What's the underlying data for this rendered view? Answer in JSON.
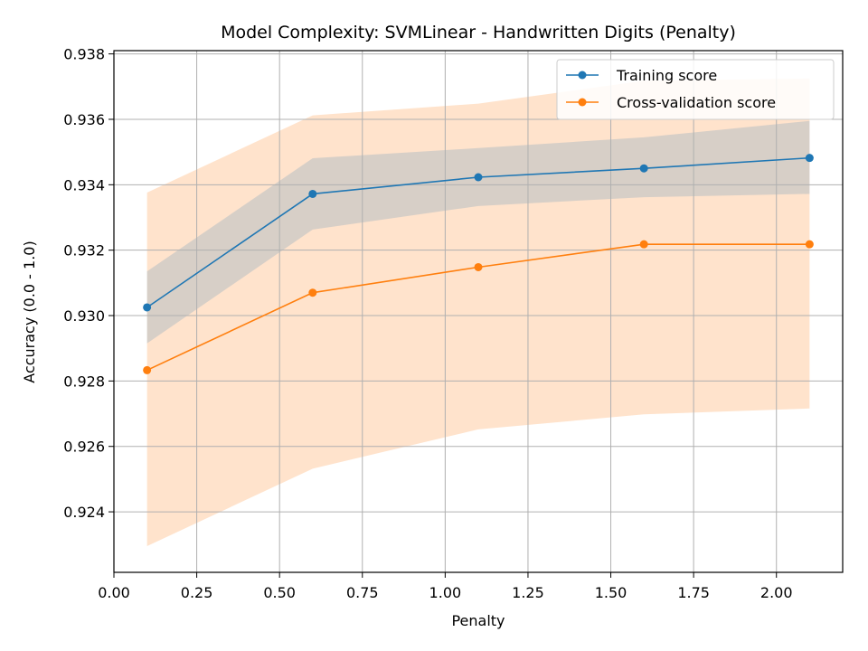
{
  "chart_data": {
    "type": "line",
    "title": "Model Complexity: SVMLinear - Handwritten Digits (Penalty)",
    "xlabel": "Penalty",
    "ylabel": "Accuracy (0.0 - 1.0)",
    "xlim": [
      0.0,
      2.2
    ],
    "ylim": [
      0.92215,
      0.9381
    ],
    "xticks": [
      0.0,
      0.25,
      0.5,
      0.75,
      1.0,
      1.25,
      1.5,
      1.75,
      2.0
    ],
    "xtick_labels": [
      "0.00",
      "0.25",
      "0.50",
      "0.75",
      "1.00",
      "1.25",
      "1.50",
      "1.75",
      "2.00"
    ],
    "yticks": [
      0.924,
      0.926,
      0.928,
      0.93,
      0.932,
      0.934,
      0.936,
      0.938
    ],
    "ytick_labels": [
      "0.924",
      "0.926",
      "0.928",
      "0.930",
      "0.932",
      "0.934",
      "0.936",
      "0.938"
    ],
    "grid": true,
    "legend_position": "top-right",
    "x": [
      0.1,
      0.6,
      1.1,
      1.6,
      2.1
    ],
    "series": [
      {
        "name": "Training score",
        "color": "#1f77b4",
        "band_color": "#1f77b4",
        "values": [
          0.93025,
          0.93372,
          0.93423,
          0.9345,
          0.93482
        ],
        "band_lower": [
          0.92915,
          0.93263,
          0.93335,
          0.93362,
          0.93372
        ],
        "band_upper": [
          0.93135,
          0.93481,
          0.93512,
          0.93545,
          0.93595
        ]
      },
      {
        "name": "Cross-validation score",
        "color": "#ff7f0e",
        "band_color": "#ffdcbf",
        "values": [
          0.92833,
          0.9307,
          0.93148,
          0.93218,
          0.93218
        ],
        "band_lower": [
          0.92295,
          0.92532,
          0.92652,
          0.92698,
          0.92716
        ],
        "band_upper": [
          0.93376,
          0.93612,
          0.93648,
          0.93718,
          0.93725
        ]
      }
    ]
  }
}
